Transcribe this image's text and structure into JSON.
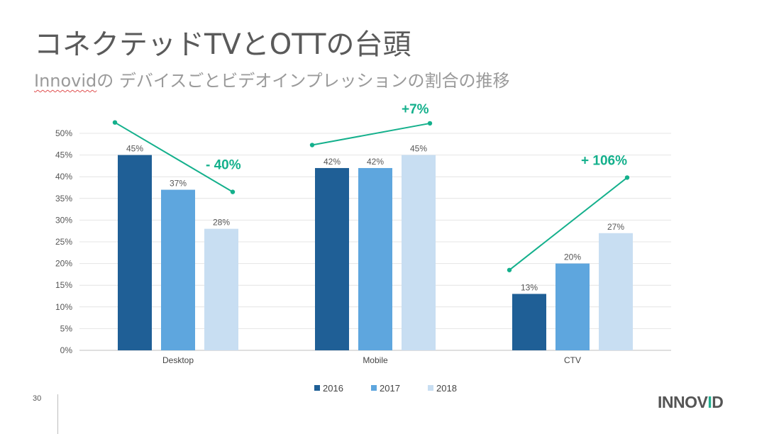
{
  "page": {
    "title": "コネクテッドTVとOTTの台頭",
    "subtitle_brand": "Innovid",
    "subtitle_rest": "の デバイスごとビデオインプレッションの割合の推移",
    "page_number": "30",
    "logo_main": "INNOV",
    "logo_accent": "I",
    "logo_end": "D"
  },
  "chart_data": {
    "type": "bar",
    "categories": [
      "Desktop",
      "Mobile",
      "CTV"
    ],
    "series": [
      {
        "name": "2016",
        "values": [
          45,
          42,
          13
        ],
        "color": "#1f5f96"
      },
      {
        "name": "2017",
        "values": [
          37,
          42,
          20
        ],
        "color": "#5ea6de"
      },
      {
        "name": "2018",
        "values": [
          28,
          45,
          27
        ],
        "color": "#c8def2"
      }
    ],
    "data_labels": [
      [
        "45%",
        "37%",
        "28%"
      ],
      [
        "42%",
        "42%",
        "45%"
      ],
      [
        "13%",
        "20%",
        "27%"
      ]
    ],
    "y_ticks": [
      "0%",
      "5%",
      "10%",
      "15%",
      "20%",
      "25%",
      "30%",
      "35%",
      "40%",
      "45%",
      "50%"
    ],
    "ylim": [
      0,
      50
    ],
    "grid": true,
    "legend_position": "bottom",
    "trend_annotations": [
      {
        "category": "Desktop",
        "text": "- 40%",
        "start": 52.5,
        "end": 36.5
      },
      {
        "category": "Mobile",
        "text": "+7%",
        "start": 47.3,
        "end": 52.3
      },
      {
        "category": "CTV",
        "text": "+ 106%",
        "start": 18.5,
        "end": 39.8
      }
    ],
    "trend_color": "#14b08c"
  }
}
